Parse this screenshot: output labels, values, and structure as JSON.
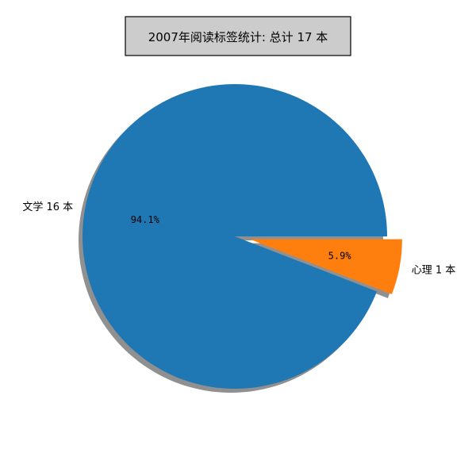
{
  "chart_data": {
    "type": "pie",
    "title": "2007年阅读标签统计: 总计 17 本",
    "categories": [
      "文学 16 本",
      "心理 1 本"
    ],
    "values": [
      16,
      1
    ],
    "percent_labels": [
      "94.1%",
      "5.9%"
    ],
    "colors": [
      "#1f77b4",
      "#ff7f0e"
    ],
    "explode": [
      0,
      1
    ],
    "shadow": true,
    "title_box": {
      "background": "#cccccc",
      "border": "#000000"
    }
  }
}
